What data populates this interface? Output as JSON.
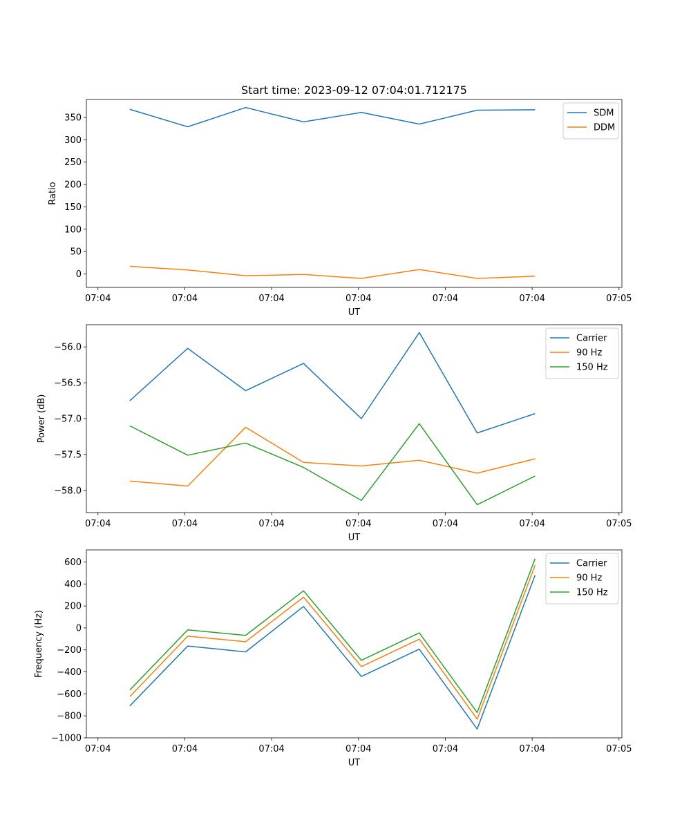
{
  "chart_data": [
    {
      "type": "line",
      "title": "Start time: 2023-09-12 07:04:01.712175",
      "xlabel": "UT",
      "ylabel": "Ratio",
      "x": [
        1,
        2,
        3,
        4,
        5,
        6,
        7,
        8
      ],
      "xlim": [
        0.25,
        9.5
      ],
      "xticks": [
        0.45,
        1.95,
        3.45,
        4.95,
        6.45,
        7.95,
        9.45
      ],
      "xticklabels": [
        "07:04",
        "07:04",
        "07:04",
        "07:04",
        "07:04",
        "07:04",
        "07:05"
      ],
      "ylim": [
        -30,
        390
      ],
      "yticks": [
        0,
        50,
        100,
        150,
        200,
        250,
        300,
        350
      ],
      "yticklabels": [
        "0",
        "50",
        "100",
        "150",
        "200",
        "250",
        "300",
        "350"
      ],
      "legend_position": "top-right",
      "series": [
        {
          "name": "SDM",
          "color": "#1f77b4",
          "values": [
            368,
            329,
            372,
            340,
            361,
            335,
            366,
            367
          ]
        },
        {
          "name": "DDM",
          "color": "#ff7f0e",
          "values": [
            17,
            9,
            -4,
            -1,
            -10,
            10,
            -10,
            -5
          ]
        }
      ]
    },
    {
      "type": "line",
      "title": "",
      "xlabel": "UT",
      "ylabel": "Power (dB)",
      "x": [
        1,
        2,
        3,
        4,
        5,
        6,
        7,
        8
      ],
      "xlim": [
        0.25,
        9.5
      ],
      "xticks": [
        0.45,
        1.95,
        3.45,
        4.95,
        6.45,
        7.95,
        9.45
      ],
      "xticklabels": [
        "07:04",
        "07:04",
        "07:04",
        "07:04",
        "07:04",
        "07:04",
        "07:05"
      ],
      "ylim": [
        -58.31,
        -55.69
      ],
      "yticks": [
        -58.0,
        -57.5,
        -57.0,
        -56.5,
        -56.0
      ],
      "yticklabels": [
        "−58.0",
        "−57.5",
        "−57.0",
        "−56.5",
        "−56.0"
      ],
      "legend_position": "top-right",
      "series": [
        {
          "name": "Carrier",
          "color": "#1f77b4",
          "values": [
            -56.75,
            -56.02,
            -56.61,
            -56.23,
            -57.0,
            -55.8,
            -57.2,
            -56.93
          ]
        },
        {
          "name": "90 Hz",
          "color": "#ff7f0e",
          "values": [
            -57.87,
            -57.94,
            -57.12,
            -57.61,
            -57.66,
            -57.58,
            -57.76,
            -57.56
          ]
        },
        {
          "name": "150 Hz",
          "color": "#2ca02c",
          "values": [
            -57.1,
            -57.51,
            -57.34,
            -57.68,
            -58.14,
            -57.07,
            -58.2,
            -57.8
          ]
        }
      ]
    },
    {
      "type": "line",
      "title": "",
      "xlabel": "UT",
      "ylabel": "Frequency (Hz)",
      "x": [
        1,
        2,
        3,
        4,
        5,
        6,
        7,
        8
      ],
      "xlim": [
        0.25,
        9.5
      ],
      "xticks": [
        0.45,
        1.95,
        3.45,
        4.95,
        6.45,
        7.95,
        9.45
      ],
      "xticklabels": [
        "07:04",
        "07:04",
        "07:04",
        "07:04",
        "07:04",
        "07:04",
        "07:05"
      ],
      "ylim": [
        -1000,
        710
      ],
      "yticks": [
        -1000,
        -800,
        -600,
        -400,
        -200,
        0,
        200,
        400,
        600
      ],
      "yticklabels": [
        "−1000",
        "−800",
        "−600",
        "−400",
        "−200",
        "0",
        "200",
        "400",
        "600"
      ],
      "legend_position": "top-right",
      "series": [
        {
          "name": "Carrier",
          "color": "#1f77b4",
          "values": [
            -710,
            -165,
            -218,
            195,
            -442,
            -193,
            -920,
            480
          ]
        },
        {
          "name": "90 Hz",
          "color": "#ff7f0e",
          "values": [
            -625,
            -75,
            -125,
            280,
            -352,
            -102,
            -830,
            570
          ]
        },
        {
          "name": "150 Hz",
          "color": "#2ca02c",
          "values": [
            -565,
            -18,
            -68,
            338,
            -295,
            -45,
            -770,
            630
          ]
        }
      ]
    }
  ]
}
